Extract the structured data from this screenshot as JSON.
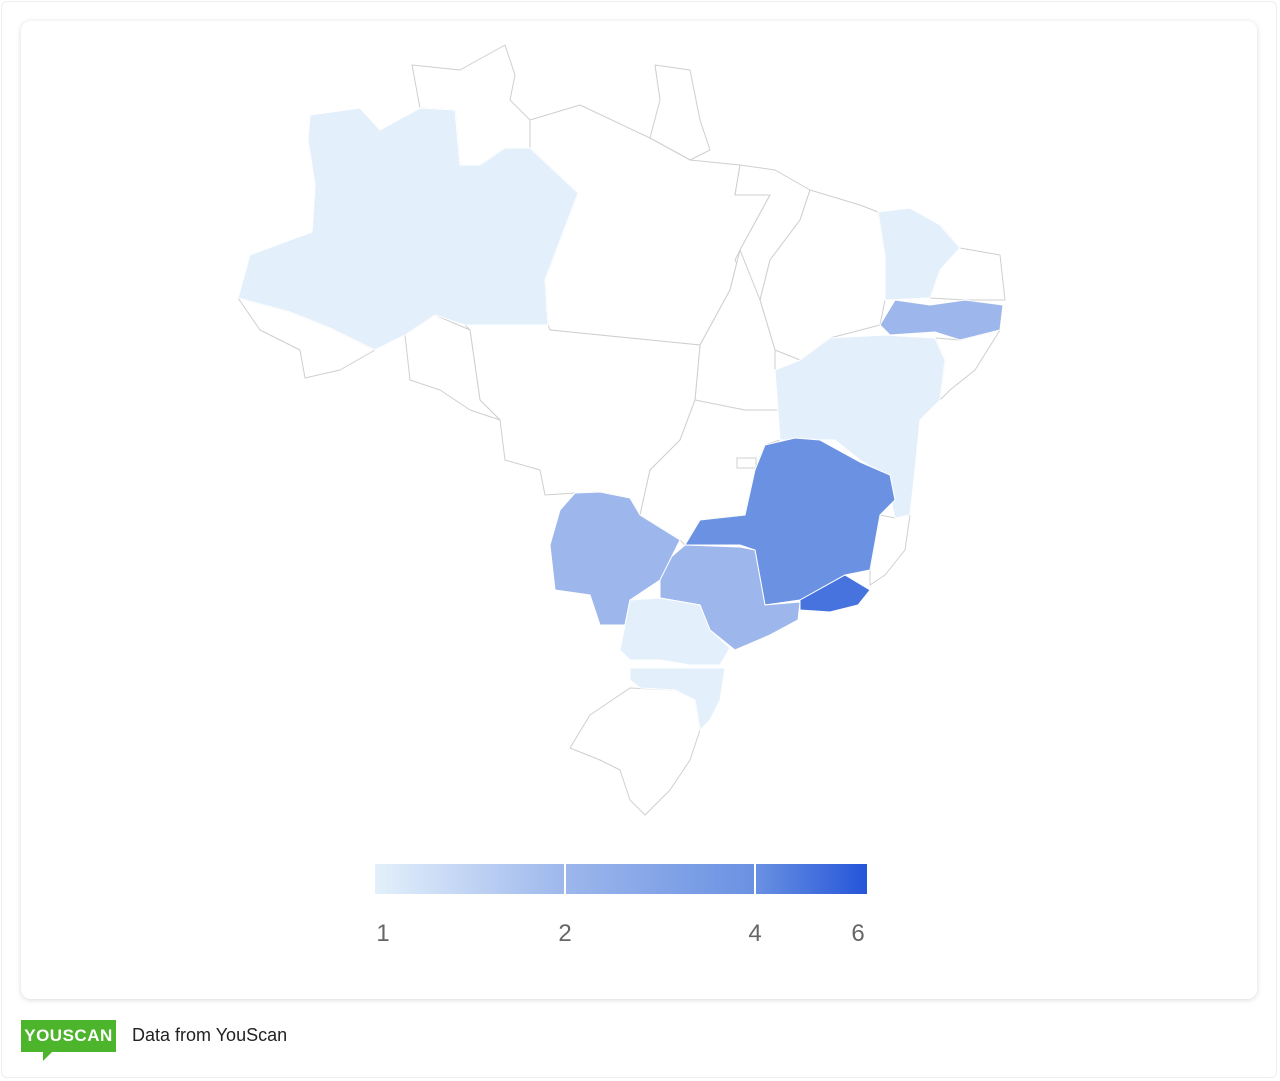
{
  "chart_data": {
    "type": "choropleth",
    "values": [
      1,
      1,
      2,
      1,
      4,
      5,
      2,
      2,
      1,
      1
    ],
    "legend": {
      "ticks": [
        1,
        2,
        4,
        6
      ],
      "colors": [
        "#e3f0fb",
        "#9db7ec",
        "#6a91e2",
        "#2455d9"
      ]
    }
  },
  "footer": {
    "logo": "YOUSCAN",
    "text": "Data from YouScan"
  }
}
